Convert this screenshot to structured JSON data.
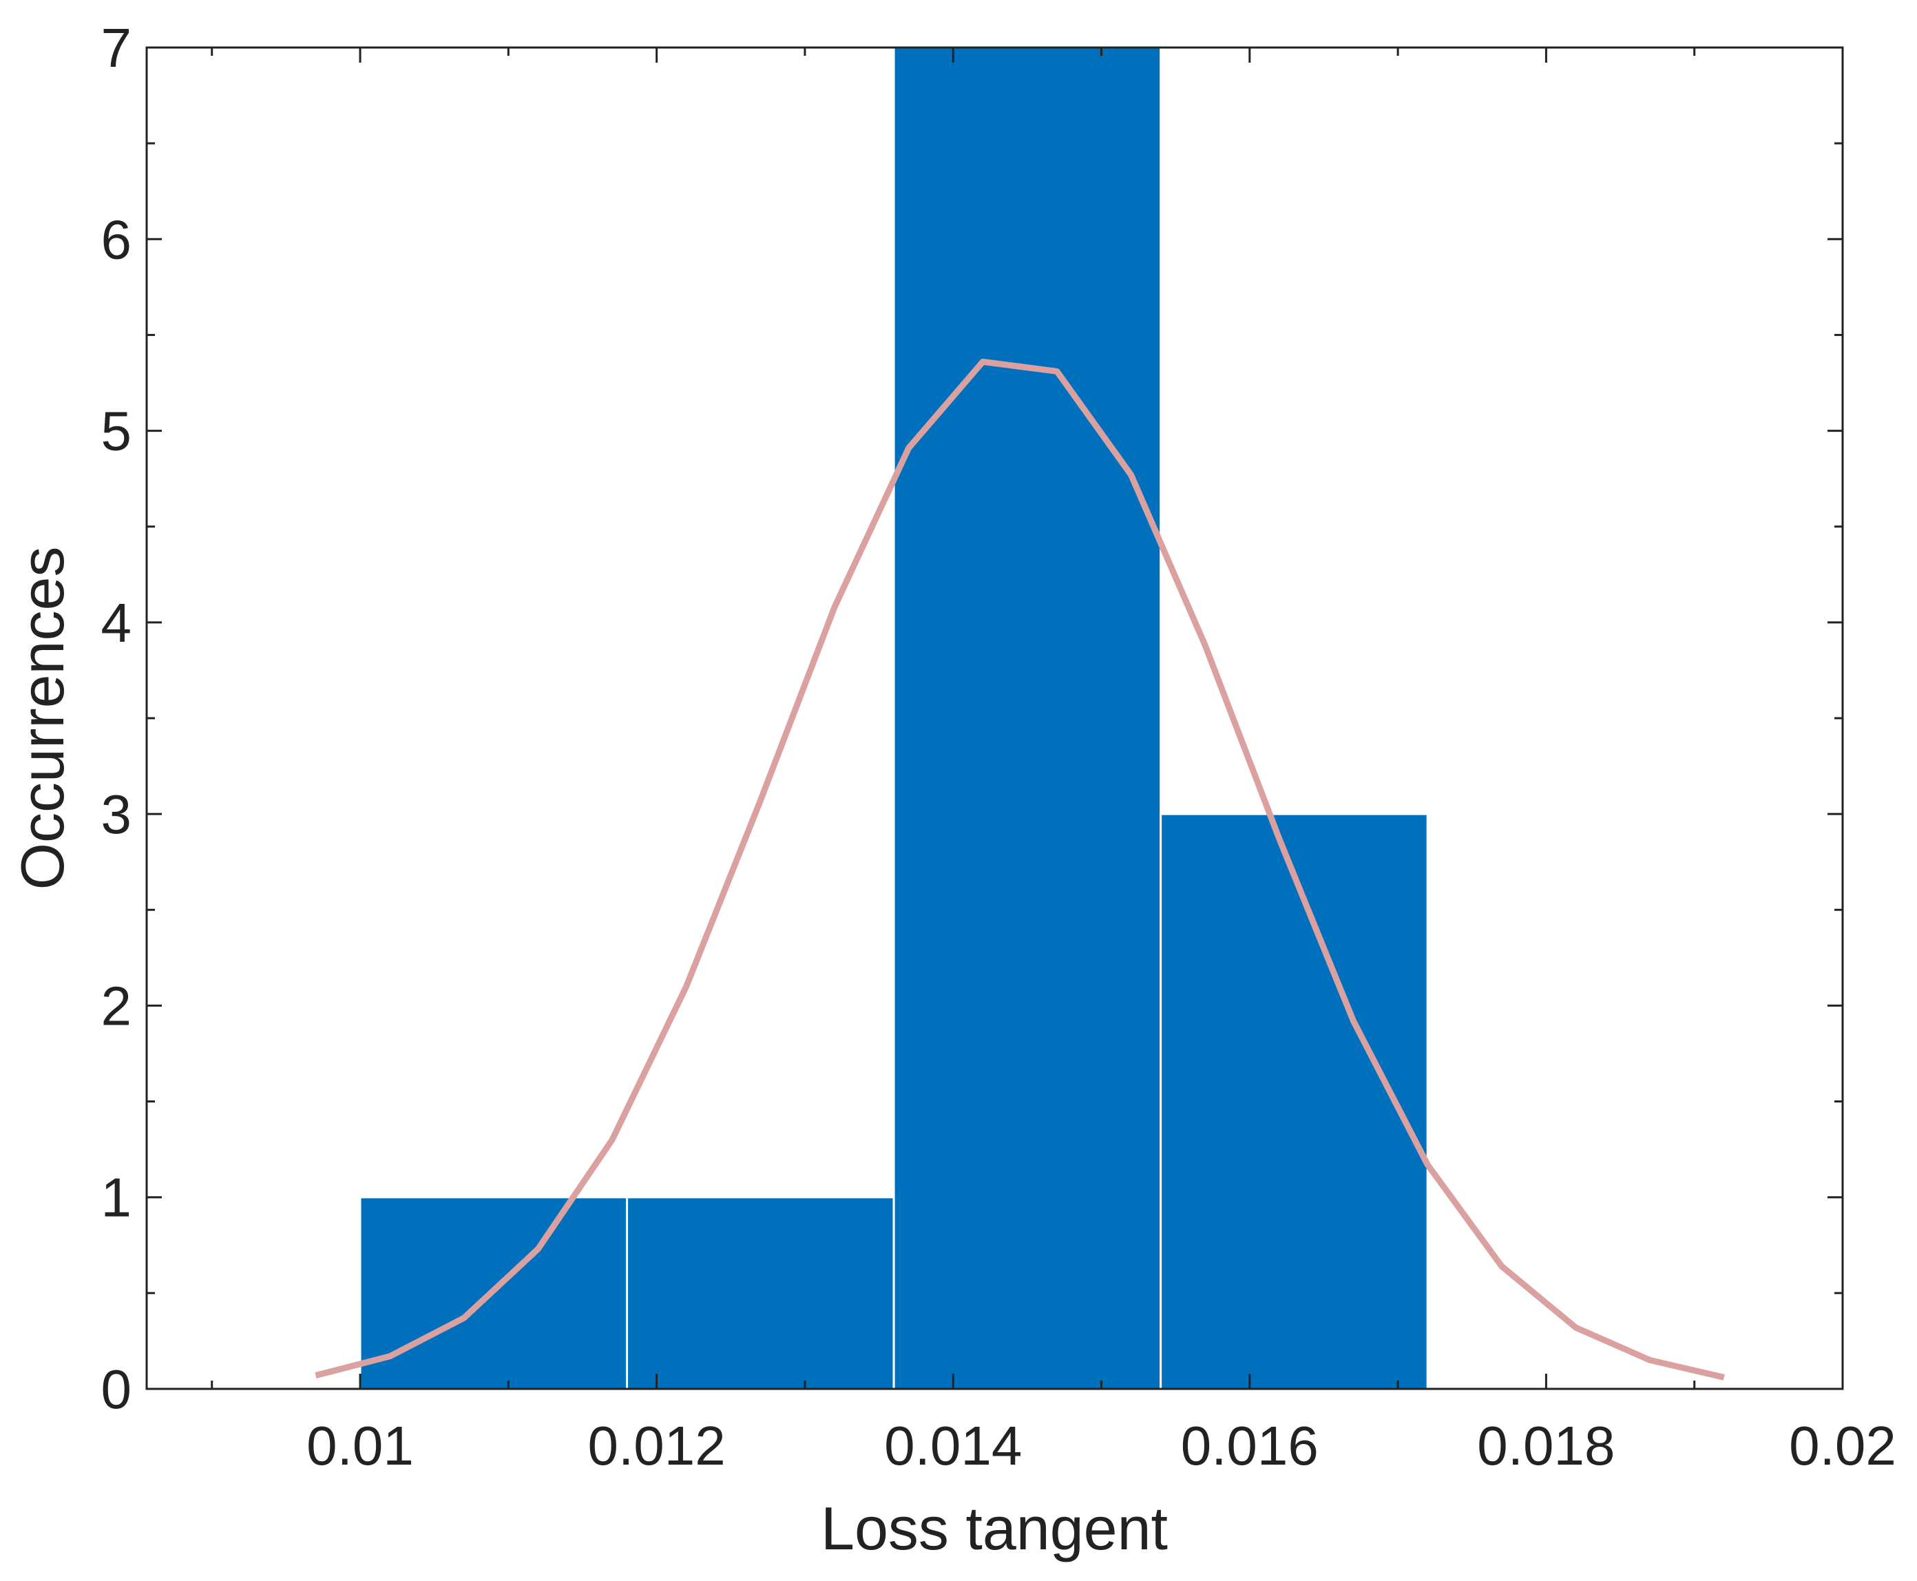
{
  "chart_data": {
    "type": "histogram",
    "xlabel": "Loss tangent",
    "ylabel": "Occurrences",
    "bins": [
      0.01,
      0.0118,
      0.0136,
      0.0154,
      0.0172
    ],
    "values": [
      1,
      1,
      7,
      3
    ],
    "color": "#0070bc",
    "fit": {
      "type": "line",
      "color": "#dba0a0",
      "x": [
        0.0097,
        0.0102,
        0.0107,
        0.0112,
        0.0117,
        0.0122,
        0.0127,
        0.0132,
        0.0137,
        0.0142,
        0.0147,
        0.0152,
        0.0157,
        0.0162,
        0.0167,
        0.0172,
        0.0177,
        0.0182,
        0.0187,
        0.0192
      ],
      "values": [
        0.07,
        0.17,
        0.37,
        0.73,
        1.3,
        2.1,
        3.07,
        4.08,
        4.91,
        5.36,
        5.31,
        4.77,
        3.88,
        2.87,
        1.92,
        1.17,
        0.64,
        0.32,
        0.15,
        0.06
      ]
    },
    "xlim": [
      0.00856,
      0.02
    ],
    "ylim": [
      0,
      7
    ],
    "xticks": [
      0.01,
      0.012,
      0.014,
      0.016,
      0.018,
      0.02
    ],
    "yticks": [
      0,
      1,
      2,
      3,
      4,
      5,
      6,
      7
    ],
    "xminorticks": [
      0.009,
      0.011,
      0.013,
      0.015,
      0.017,
      0.019
    ],
    "yminorticks": [
      0.5,
      1.5,
      2.5,
      3.5,
      4.5,
      5.5,
      6.5
    ]
  }
}
